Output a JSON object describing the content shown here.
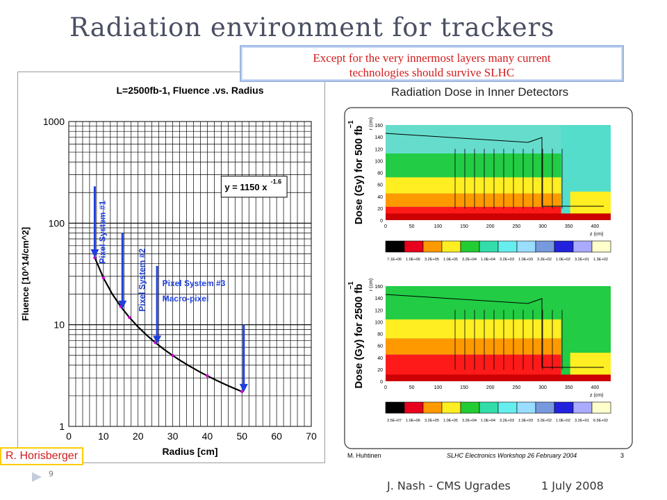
{
  "slide": {
    "title": "Radiation environment for trackers",
    "callout_line1": "Except for the very innermost layers many current",
    "callout_line2": "technologies should survive SLHC",
    "author_credit": "R. Horisberger",
    "footer_left": "J. Nash - CMS Ugrades",
    "footer_right": "1 July 2008",
    "page_mark": "9"
  },
  "chart_data": [
    {
      "type": "line",
      "title": "L=2500fb-1, Fluence .vs. Radius",
      "xlabel": "Radius  [cm]",
      "ylabel": "Fluence [10^14/cm^2]",
      "xlim": [
        0,
        70
      ],
      "ylim": [
        1,
        1000
      ],
      "yscale": "log",
      "xticks": [
        0,
        10,
        20,
        30,
        40,
        50,
        60,
        70
      ],
      "yticks": [
        1,
        10,
        100,
        1000
      ],
      "grid": true,
      "formula_label": "y = 1150 x",
      "formula_exponent": "-1.6",
      "x": [
        7.5,
        10,
        12.5,
        15,
        17.5,
        20,
        22.5,
        25,
        27.5,
        30,
        32.5,
        35,
        37.5,
        40,
        42.5,
        45,
        47.5,
        50
      ],
      "points": [
        7.5,
        10,
        15,
        17.5,
        25,
        30,
        40,
        50
      ],
      "annotations": [
        {
          "text": "Pixel System #1",
          "x": 7.5
        },
        {
          "text": "Pixel System #2",
          "x": 15.5
        },
        {
          "text": "Pixel System #3",
          "text2": "Macro-pixel",
          "x": 25.5
        },
        {
          "text": "",
          "x": 50.5
        }
      ],
      "colors": {
        "curve": "#000000",
        "points": "#cc00cc",
        "arrows": "#1f3fdc",
        "labels": "#1f3fdc"
      }
    },
    {
      "type": "heatmap",
      "title": "Radiation Dose in Inner Detectors",
      "panels": [
        {
          "ylabel": "Dose (Gy) for 500 fb",
          "ylabel_sup": "−1",
          "rlabel": "r (cm)",
          "zlabel": "z (cm)",
          "xticks": [
            0,
            50,
            100,
            150,
            200,
            250,
            300,
            350,
            400
          ],
          "yticks": [
            0,
            20,
            40,
            60,
            80,
            100,
            120,
            140,
            160
          ],
          "scale_labels": [
            "7.1E+06",
            "1.0E+06",
            "3.2E+05",
            "1.0E+05",
            "3.2E+04",
            "1.0E+04",
            "3.2E+03",
            "1.0E+03",
            "3.2E+02",
            "1.0E+02",
            "3.2E+01",
            "1.3E+02"
          ]
        },
        {
          "ylabel": "Dose (Gy) for 2500 fb",
          "ylabel_sup": "−1",
          "rlabel": "r (cm)",
          "zlabel": "z (cm)",
          "xticks": [
            0,
            50,
            100,
            150,
            200,
            250,
            300,
            350,
            400
          ],
          "yticks": [
            0,
            20,
            40,
            60,
            80,
            100,
            120,
            140,
            160
          ],
          "scale_labels": [
            "3.5E+07",
            "1.0E+06",
            "3.2E+05",
            "1.0E+05",
            "3.2E+04",
            "1.0E+04",
            "3.2E+03",
            "1.0E+03",
            "3.2E+02",
            "1.0E+02",
            "3.2E+01",
            "6.5E+02"
          ]
        }
      ],
      "scale_colors": [
        "#000000",
        "#e8001c",
        "#ff9900",
        "#ffee22",
        "#22cc33",
        "#33ddaa",
        "#66eeee",
        "#99ddff",
        "#7799dd",
        "#2222dd",
        "#aaaaff",
        "#ffffcc"
      ],
      "footer_author": "M. Huhtinen",
      "footer_event": "SLHC Electronics Workshop 26 February 2004",
      "footer_page": "3"
    }
  ]
}
